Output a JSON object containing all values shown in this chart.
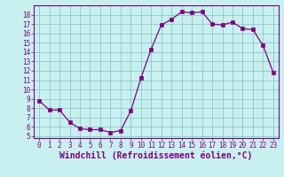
{
  "x": [
    0,
    1,
    2,
    3,
    4,
    5,
    6,
    7,
    8,
    9,
    10,
    11,
    12,
    13,
    14,
    15,
    16,
    17,
    18,
    19,
    20,
    21,
    22,
    23
  ],
  "y": [
    8.8,
    7.8,
    7.8,
    6.5,
    5.8,
    5.7,
    5.7,
    5.4,
    5.6,
    7.7,
    11.2,
    14.3,
    16.9,
    17.5,
    18.3,
    18.2,
    18.3,
    17.0,
    16.9,
    17.2,
    16.5,
    16.4,
    14.7,
    11.8
  ],
  "line_color": "#800080",
  "marker": "s",
  "marker_size": 2.2,
  "bg_color": "#c8f0f0",
  "grid_color": "#80c0c0",
  "xlabel": "Windchill (Refroidissement éolien,°C)",
  "ylim": [
    4.8,
    19.0
  ],
  "xlim": [
    -0.5,
    23.5
  ],
  "yticks": [
    5,
    6,
    7,
    8,
    9,
    10,
    11,
    12,
    13,
    14,
    15,
    16,
    17,
    18
  ],
  "xticks": [
    0,
    1,
    2,
    3,
    4,
    5,
    6,
    7,
    8,
    9,
    10,
    11,
    12,
    13,
    14,
    15,
    16,
    17,
    18,
    19,
    20,
    21,
    22,
    23
  ],
  "tick_color": "#800080",
  "tick_fontsize": 5.5,
  "xlabel_fontsize": 7.0
}
